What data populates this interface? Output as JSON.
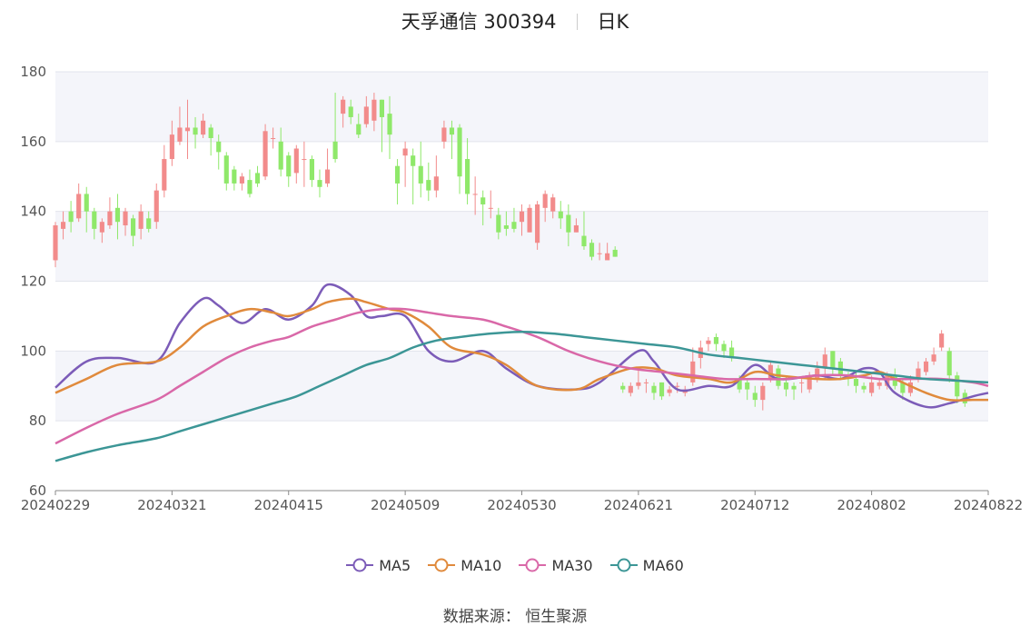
{
  "header": {
    "title": "天孚通信 300394",
    "period": "日K"
  },
  "legend": [
    {
      "name": "MA5",
      "color": "#7c5cb8"
    },
    {
      "name": "MA10",
      "color": "#e08a3c"
    },
    {
      "name": "MA30",
      "color": "#d968a8"
    },
    {
      "name": "MA60",
      "color": "#3c9696"
    }
  ],
  "footer": {
    "source_label": "数据来源：",
    "source_value": "恒生聚源"
  },
  "colors": {
    "up": "#f28b8b",
    "down": "#8fe86a",
    "band": "#f4f5fa",
    "grid": "#e2e4ec"
  },
  "chart_data": {
    "type": "candlestick",
    "ylim": [
      60,
      180
    ],
    "yticks": [
      60,
      80,
      100,
      120,
      140,
      160,
      180
    ],
    "xticks": [
      "20240229",
      "20240321",
      "20240415",
      "20240509",
      "20240530",
      "20240621",
      "20240712",
      "20240802",
      "20240822"
    ],
    "n_bars": 121,
    "xtick_positions": [
      0,
      15,
      30,
      45,
      60,
      75,
      90,
      105,
      120
    ],
    "candles": [
      [
        126,
        136,
        124,
        137
      ],
      [
        135,
        137,
        132,
        140
      ],
      [
        140,
        137,
        134,
        143
      ],
      [
        138,
        145,
        137,
        148
      ],
      [
        145,
        140,
        134,
        147
      ],
      [
        140,
        135,
        132,
        141
      ],
      [
        134,
        137,
        131,
        138
      ],
      [
        136,
        140,
        135,
        144
      ],
      [
        141,
        137,
        132,
        145
      ],
      [
        136,
        140,
        133,
        141
      ],
      [
        138,
        133,
        130,
        139
      ],
      [
        135,
        140,
        132,
        142
      ],
      [
        138,
        135,
        134,
        140
      ],
      [
        137,
        146,
        135,
        148
      ],
      [
        146,
        155,
        144,
        159
      ],
      [
        155,
        162,
        153,
        166
      ],
      [
        160,
        164,
        159,
        170
      ],
      [
        163,
        164,
        155,
        172
      ],
      [
        164,
        162,
        158,
        167
      ],
      [
        162,
        166,
        161,
        168
      ],
      [
        164,
        161,
        156,
        165
      ],
      [
        160,
        157,
        152,
        162
      ],
      [
        156,
        148,
        146,
        157
      ],
      [
        152,
        148,
        146,
        153
      ],
      [
        148,
        150,
        146,
        151
      ],
      [
        149,
        145,
        144,
        152
      ],
      [
        151,
        148,
        147,
        153
      ],
      [
        150,
        163,
        149,
        165
      ],
      [
        161,
        161,
        158,
        164
      ],
      [
        160,
        152,
        150,
        164
      ],
      [
        156,
        150,
        147,
        157
      ],
      [
        151,
        158,
        148,
        159
      ],
      [
        155,
        155,
        147,
        160
      ],
      [
        155,
        149,
        147,
        156
      ],
      [
        149,
        147,
        144,
        152
      ],
      [
        148,
        152,
        147,
        158
      ],
      [
        160,
        155,
        154,
        174
      ],
      [
        168,
        172,
        164,
        173
      ],
      [
        170,
        167,
        165,
        172
      ],
      [
        165,
        162,
        161,
        168
      ],
      [
        165,
        170,
        164,
        173
      ],
      [
        166,
        172,
        163,
        174
      ],
      [
        172,
        167,
        157,
        172
      ],
      [
        168,
        162,
        155,
        173
      ],
      [
        153,
        148,
        142,
        155
      ],
      [
        156,
        158,
        147,
        160
      ],
      [
        156,
        153,
        142,
        158
      ],
      [
        153,
        148,
        144,
        160
      ],
      [
        149,
        146,
        143,
        154
      ],
      [
        146,
        150,
        144,
        156
      ],
      [
        160,
        164,
        158,
        166
      ],
      [
        164,
        162,
        155,
        166
      ],
      [
        164,
        150,
        145,
        165
      ],
      [
        155,
        145,
        142,
        161
      ],
      [
        145,
        145,
        139,
        150
      ],
      [
        144,
        142,
        136,
        146
      ],
      [
        141,
        141,
        138,
        146
      ],
      [
        139,
        134,
        132,
        141
      ],
      [
        136,
        135,
        133,
        140
      ],
      [
        137,
        135,
        134,
        141
      ],
      [
        137,
        140,
        133,
        142
      ],
      [
        134,
        141,
        134,
        142
      ],
      [
        131,
        142,
        129,
        143
      ],
      [
        141,
        145,
        137,
        146
      ],
      [
        140,
        144,
        138,
        145
      ],
      [
        140,
        138,
        135,
        143
      ],
      [
        139,
        134,
        130,
        142
      ],
      [
        134,
        136,
        134,
        138
      ],
      [
        133,
        130,
        129,
        140
      ],
      [
        131,
        127,
        126,
        132
      ],
      [
        128,
        128,
        126,
        131
      ],
      [
        126,
        128,
        127,
        131
      ],
      [
        129,
        127,
        127,
        130
      ],
      [
        90,
        89,
        88,
        91
      ],
      [
        88,
        90,
        87,
        91
      ],
      [
        90,
        91,
        89,
        95
      ],
      [
        91,
        91,
        88,
        92
      ],
      [
        90,
        88,
        86,
        91
      ],
      [
        91,
        87,
        86,
        91
      ],
      [
        88,
        89,
        87,
        90
      ],
      [
        90,
        90,
        88,
        91
      ],
      [
        88,
        89,
        87,
        90
      ],
      [
        91,
        97,
        90,
        101
      ],
      [
        98,
        101,
        95,
        103
      ],
      [
        102,
        103,
        100,
        104
      ],
      [
        104,
        102,
        100,
        105
      ],
      [
        102,
        100,
        98,
        103
      ],
      [
        101,
        98,
        97,
        103
      ],
      [
        92,
        89,
        88,
        93
      ],
      [
        91,
        89,
        86,
        92
      ],
      [
        88,
        86,
        84,
        90
      ],
      [
        86,
        90,
        83,
        91
      ],
      [
        92,
        96,
        91,
        97
      ],
      [
        95,
        90,
        89,
        96
      ],
      [
        91,
        89,
        87,
        93
      ],
      [
        90,
        89,
        86,
        91
      ],
      [
        91,
        91,
        88,
        92
      ],
      [
        89,
        93,
        88,
        94
      ],
      [
        92,
        95,
        91,
        97
      ],
      [
        95,
        99,
        92,
        101
      ],
      [
        100,
        95,
        93,
        100
      ],
      [
        97,
        93,
        92,
        98
      ],
      [
        93,
        92,
        90,
        94
      ],
      [
        92,
        90,
        88,
        94
      ],
      [
        90,
        89,
        88,
        91
      ],
      [
        88,
        91,
        87,
        93
      ],
      [
        90,
        91,
        89,
        92
      ],
      [
        90,
        93,
        89,
        94
      ],
      [
        93,
        90,
        89,
        95
      ],
      [
        91,
        88,
        86,
        92
      ],
      [
        88,
        91,
        87,
        93
      ],
      [
        92,
        95,
        91,
        97
      ],
      [
        94,
        97,
        93,
        98
      ],
      [
        97,
        99,
        96,
        101
      ],
      [
        101,
        105,
        100,
        106
      ],
      [
        100,
        93,
        91,
        101
      ],
      [
        93,
        87,
        85,
        94
      ],
      [
        88,
        85,
        84,
        89
      ]
    ],
    "ma_series": [
      {
        "name": "MA5",
        "color": "#7c5cb8",
        "points": [
          [
            0,
            89.5
          ],
          [
            4,
            97
          ],
          [
            8,
            98
          ],
          [
            13,
            97
          ],
          [
            16,
            108
          ],
          [
            19,
            115
          ],
          [
            21,
            113
          ],
          [
            24,
            108
          ],
          [
            27,
            112
          ],
          [
            30,
            109
          ],
          [
            33,
            113
          ],
          [
            35,
            119
          ],
          [
            38,
            116
          ],
          [
            40,
            110
          ],
          [
            42,
            110
          ],
          [
            45,
            110
          ],
          [
            48,
            100
          ],
          [
            51,
            97
          ],
          [
            55,
            100
          ],
          [
            58,
            95
          ],
          [
            62,
            90
          ],
          [
            67,
            89
          ],
          [
            70,
            91
          ],
          [
            75,
            100
          ],
          [
            77,
            97
          ],
          [
            80,
            89
          ],
          [
            84,
            90
          ],
          [
            87,
            90
          ],
          [
            90,
            96
          ],
          [
            93,
            92
          ],
          [
            98,
            93
          ],
          [
            101,
            92
          ],
          [
            104,
            95
          ],
          [
            106,
            94
          ],
          [
            108,
            88
          ],
          [
            112,
            84
          ],
          [
            115,
            85
          ],
          [
            118,
            87
          ],
          [
            120,
            88
          ]
        ]
      },
      {
        "name": "MA10",
        "color": "#e08a3c",
        "points": [
          [
            0,
            88
          ],
          [
            4,
            92
          ],
          [
            8,
            96
          ],
          [
            13,
            97
          ],
          [
            16,
            101
          ],
          [
            19,
            107
          ],
          [
            22,
            110
          ],
          [
            25,
            112
          ],
          [
            28,
            111
          ],
          [
            30,
            110
          ],
          [
            33,
            112
          ],
          [
            35,
            114
          ],
          [
            38,
            115
          ],
          [
            40,
            114
          ],
          [
            43,
            112
          ],
          [
            45,
            111
          ],
          [
            48,
            107
          ],
          [
            51,
            101
          ],
          [
            55,
            99
          ],
          [
            58,
            96
          ],
          [
            62,
            90
          ],
          [
            67,
            89
          ],
          [
            70,
            92
          ],
          [
            74,
            95
          ],
          [
            77,
            95
          ],
          [
            80,
            93
          ],
          [
            84,
            92
          ],
          [
            87,
            91
          ],
          [
            90,
            94
          ],
          [
            93,
            93
          ],
          [
            98,
            92
          ],
          [
            101,
            92
          ],
          [
            104,
            93
          ],
          [
            106,
            94
          ],
          [
            108,
            92
          ],
          [
            112,
            88
          ],
          [
            115,
            86
          ],
          [
            118,
            86
          ],
          [
            120,
            86
          ]
        ]
      },
      {
        "name": "MA30",
        "color": "#d968a8",
        "points": [
          [
            0,
            73.5
          ],
          [
            4,
            78
          ],
          [
            8,
            82
          ],
          [
            13,
            86
          ],
          [
            16,
            90
          ],
          [
            19,
            94
          ],
          [
            22,
            98
          ],
          [
            25,
            101
          ],
          [
            28,
            103
          ],
          [
            30,
            104
          ],
          [
            33,
            107
          ],
          [
            36,
            109
          ],
          [
            39,
            111
          ],
          [
            42,
            112
          ],
          [
            45,
            112
          ],
          [
            48,
            111
          ],
          [
            51,
            110
          ],
          [
            55,
            109
          ],
          [
            58,
            107
          ],
          [
            62,
            104
          ],
          [
            66,
            100
          ],
          [
            70,
            97
          ],
          [
            74,
            95
          ],
          [
            78,
            94
          ],
          [
            82,
            93
          ],
          [
            86,
            92
          ],
          [
            90,
            92
          ],
          [
            94,
            92
          ],
          [
            98,
            93
          ],
          [
            102,
            93
          ],
          [
            106,
            92
          ],
          [
            110,
            92
          ],
          [
            114,
            92
          ],
          [
            118,
            91
          ],
          [
            120,
            90
          ]
        ]
      },
      {
        "name": "MA60",
        "color": "#3c9696",
        "points": [
          [
            0,
            68.5
          ],
          [
            4,
            71
          ],
          [
            8,
            73
          ],
          [
            13,
            75
          ],
          [
            16,
            77
          ],
          [
            19,
            79
          ],
          [
            22,
            81
          ],
          [
            25,
            83
          ],
          [
            28,
            85
          ],
          [
            31,
            87
          ],
          [
            34,
            90
          ],
          [
            37,
            93
          ],
          [
            40,
            96
          ],
          [
            43,
            98
          ],
          [
            46,
            101
          ],
          [
            49,
            103
          ],
          [
            52,
            104
          ],
          [
            56,
            105
          ],
          [
            60,
            105.5
          ],
          [
            64,
            105
          ],
          [
            68,
            104
          ],
          [
            72,
            103
          ],
          [
            76,
            102
          ],
          [
            80,
            101
          ],
          [
            84,
            99
          ],
          [
            88,
            98
          ],
          [
            92,
            97
          ],
          [
            96,
            96
          ],
          [
            100,
            95
          ],
          [
            104,
            94
          ],
          [
            108,
            93
          ],
          [
            112,
            92
          ],
          [
            116,
            91.5
          ],
          [
            120,
            91
          ]
        ]
      }
    ]
  }
}
